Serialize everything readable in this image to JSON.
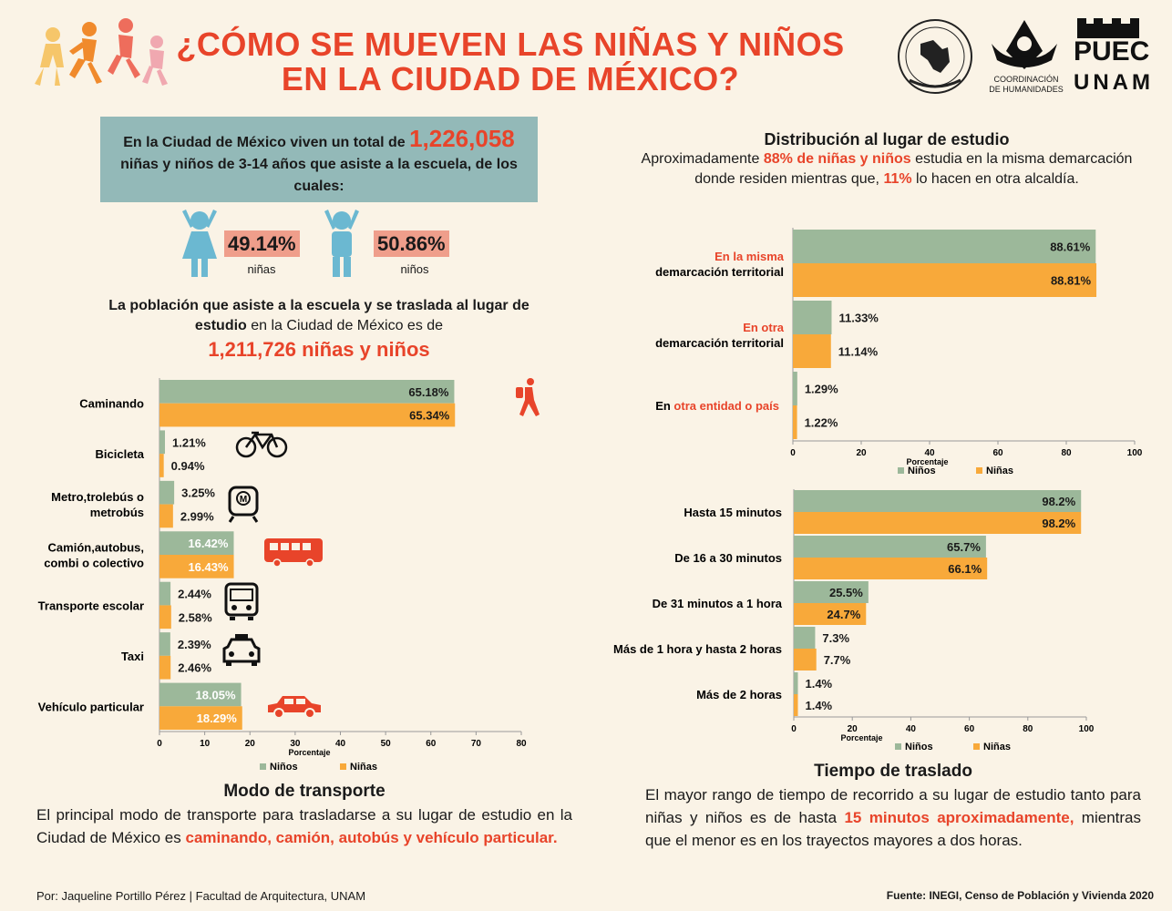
{
  "header": {
    "title_line1": "¿CÓMO SE MUEVEN LAS NIÑAS Y NIÑOS",
    "title_line2": "EN LA CIUDAD DE MÉXICO?",
    "logo_coord_line1": "COORDINACIÓN",
    "logo_coord_line2": "DE HUMANIDADES",
    "logo_puec_top": "PUEC",
    "logo_puec_bottom": "UNAM"
  },
  "intro": {
    "text_a": "En la Ciudad de México viven un total de ",
    "total": "1,226,058",
    "text_b": "niñas y niños de 3-14 años que asiste a la escuela, de los cuales:"
  },
  "gender": {
    "girls_pct": "49.14%",
    "girls_label": "niñas",
    "boys_pct": "50.86%",
    "boys_label": "niños"
  },
  "population": {
    "line1": "La población que asiste a la escuela y se traslada al lugar de",
    "line2_bold": "estudio",
    "line2_rest": " en la Ciudad de México es de",
    "total": "1,211,726 niñas y niños"
  },
  "distribution": {
    "title": "Distribución al lugar de estudio",
    "text_a": "Aproximadamente ",
    "highlight_a": "88% de niñas y niños",
    "text_b": "  estudia en  la misma demarcación donde residen mientras que, ",
    "highlight_b": "11%",
    "text_c": " lo hacen en otra alcaldía."
  },
  "transport_section": {
    "title": "Modo de transporte",
    "text_a": "El principal modo de transporte para trasladarse a su lugar de estudio en la Ciudad de México es ",
    "highlight": "caminando, camión, autobús y vehículo particular."
  },
  "time_section": {
    "title": "Tiempo de traslado",
    "text_a": "El mayor rango de  tiempo de recorrido a su lugar de estudio tanto para niñas y niños es de hasta ",
    "highlight": "15 minutos aproximadamente,",
    "text_b": " mientras que el menor es en los trayectos mayores a dos horas."
  },
  "footer": {
    "author": "Por: Jaqueline Portillo Pérez  | Facultad de Arquitectura, UNAM",
    "source": "Fuente: INEGI, Censo de Población y Vivienda 2020"
  },
  "colors": {
    "ninos": "#9cb89a",
    "ninas": "#f8a93a",
    "accent": "#e8442a",
    "box": "#93b9b8"
  },
  "chart_data": [
    {
      "type": "bar",
      "orientation": "horizontal",
      "categories": [
        "Caminando",
        "Bicicleta",
        "Metro,trolebús o metrobús",
        "Camión,autobus, combi o colectivo",
        "Transporte escolar",
        "Taxi",
        "Vehículo particular"
      ],
      "series": [
        {
          "name": "Niños",
          "values": [
            65.18,
            1.21,
            3.25,
            16.42,
            2.44,
            2.39,
            18.05
          ],
          "labels": [
            "65.18%",
            "1.21%",
            "3.25%",
            "16.42%",
            "2.44%",
            "2.39%",
            "18.05%"
          ]
        },
        {
          "name": "Niñas",
          "values": [
            65.34,
            0.94,
            2.99,
            16.43,
            2.58,
            2.46,
            18.29
          ],
          "labels": [
            "65.34%",
            "0.94%",
            "2.99%",
            "16.43%",
            "2.58%",
            "2.46%",
            "18.29%"
          ]
        }
      ],
      "xlabel": "Porcentaje",
      "xlim": [
        0,
        80
      ],
      "xticks": [
        "0",
        "10",
        "20",
        "30",
        "40",
        "50",
        "60",
        "70",
        "80"
      ],
      "legend": "bottom",
      "icons": [
        "walking-icon",
        "bicycle-icon",
        "metro-icon",
        "bus-icon",
        "school-bus-icon",
        "taxi-icon",
        "car-icon"
      ]
    },
    {
      "type": "bar",
      "orientation": "horizontal",
      "categories": [
        "En la misma demarcación territorial",
        "En otra demarcación territorial",
        "En otra entidad o país"
      ],
      "category_parts": [
        {
          "red": "En la misma",
          "black_pre": "",
          "black": "demarcación territorial"
        },
        {
          "red": "En otra",
          "black_pre": "",
          "black": "demarcación territorial"
        },
        {
          "red": "otra entidad o país",
          "black_pre": "En ",
          "black": ""
        }
      ],
      "series": [
        {
          "name": "Niños",
          "values": [
            88.61,
            11.33,
            1.29
          ],
          "labels": [
            "88.61%",
            "11.33%",
            "1.29%"
          ]
        },
        {
          "name": "Niñas",
          "values": [
            88.81,
            11.14,
            1.22
          ],
          "labels": [
            "88.81%",
            "11.14%",
            "1.22%"
          ]
        }
      ],
      "xlabel": "Porcentaje",
      "xlim": [
        0,
        100
      ],
      "xticks": [
        "0",
        "20",
        "40",
        "60",
        "80",
        "100"
      ],
      "legend": "bottom"
    },
    {
      "type": "bar",
      "orientation": "horizontal",
      "categories": [
        "Hasta 15 minutos",
        "De 16 a 30 minutos",
        "De 31 minutos a 1 hora",
        "Más de 1 hora y hasta 2 horas",
        "Más de 2 horas"
      ],
      "series": [
        {
          "name": "Niños",
          "values": [
            98.2,
            65.7,
            25.5,
            7.3,
            1.4
          ],
          "labels": [
            "98.2%",
            "65.7%",
            "25.5%",
            "7.3%",
            "1.4%"
          ]
        },
        {
          "name": "Niñas",
          "values": [
            98.2,
            66.1,
            24.7,
            7.7,
            1.4
          ],
          "labels": [
            "98.2%",
            "66.1%",
            "24.7%",
            "7.7%",
            "1.4%"
          ]
        }
      ],
      "xlabel": "Porcentaje",
      "xlim": [
        0,
        100
      ],
      "xticks": [
        "0",
        "20",
        "40",
        "60",
        "80",
        "100"
      ],
      "legend": "bottom"
    }
  ]
}
